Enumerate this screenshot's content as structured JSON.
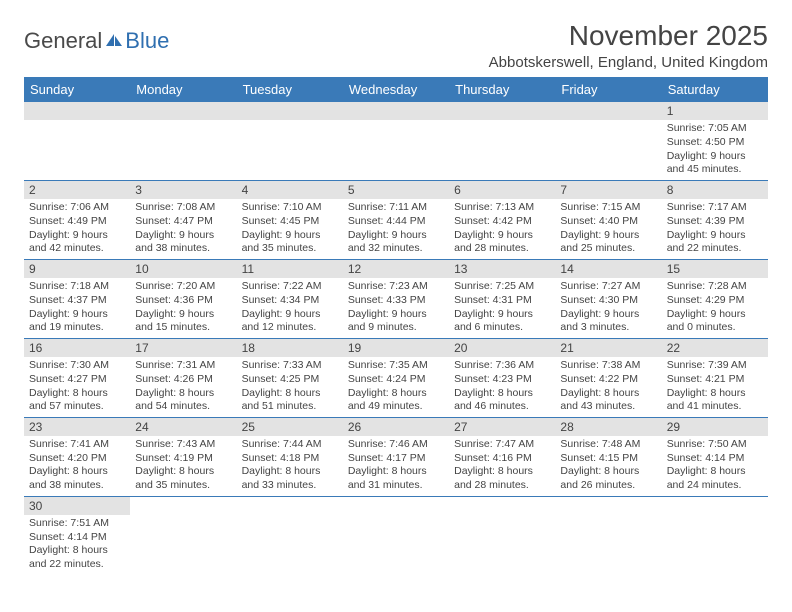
{
  "logo": {
    "text1": "General",
    "text2": "Blue"
  },
  "title": "November 2025",
  "location": "Abbotskerswell, England, United Kingdom",
  "colors": {
    "header_bg": "#3a7ab8",
    "header_text": "#ffffff",
    "daynum_bg": "#e3e3e3",
    "text": "#444444",
    "rule": "#3a7ab8",
    "logo_gray": "#4a4a4a",
    "logo_blue": "#2f6fb0"
  },
  "weekdays": [
    "Sunday",
    "Monday",
    "Tuesday",
    "Wednesday",
    "Thursday",
    "Friday",
    "Saturday"
  ],
  "weeks": [
    [
      null,
      null,
      null,
      null,
      null,
      null,
      {
        "n": "1",
        "sr": "7:05 AM",
        "ss": "4:50 PM",
        "dh": "9",
        "dm": "45"
      }
    ],
    [
      {
        "n": "2",
        "sr": "7:06 AM",
        "ss": "4:49 PM",
        "dh": "9",
        "dm": "42"
      },
      {
        "n": "3",
        "sr": "7:08 AM",
        "ss": "4:47 PM",
        "dh": "9",
        "dm": "38"
      },
      {
        "n": "4",
        "sr": "7:10 AM",
        "ss": "4:45 PM",
        "dh": "9",
        "dm": "35"
      },
      {
        "n": "5",
        "sr": "7:11 AM",
        "ss": "4:44 PM",
        "dh": "9",
        "dm": "32"
      },
      {
        "n": "6",
        "sr": "7:13 AM",
        "ss": "4:42 PM",
        "dh": "9",
        "dm": "28"
      },
      {
        "n": "7",
        "sr": "7:15 AM",
        "ss": "4:40 PM",
        "dh": "9",
        "dm": "25"
      },
      {
        "n": "8",
        "sr": "7:17 AM",
        "ss": "4:39 PM",
        "dh": "9",
        "dm": "22"
      }
    ],
    [
      {
        "n": "9",
        "sr": "7:18 AM",
        "ss": "4:37 PM",
        "dh": "9",
        "dm": "19"
      },
      {
        "n": "10",
        "sr": "7:20 AM",
        "ss": "4:36 PM",
        "dh": "9",
        "dm": "15"
      },
      {
        "n": "11",
        "sr": "7:22 AM",
        "ss": "4:34 PM",
        "dh": "9",
        "dm": "12"
      },
      {
        "n": "12",
        "sr": "7:23 AM",
        "ss": "4:33 PM",
        "dh": "9",
        "dm": "9"
      },
      {
        "n": "13",
        "sr": "7:25 AM",
        "ss": "4:31 PM",
        "dh": "9",
        "dm": "6"
      },
      {
        "n": "14",
        "sr": "7:27 AM",
        "ss": "4:30 PM",
        "dh": "9",
        "dm": "3"
      },
      {
        "n": "15",
        "sr": "7:28 AM",
        "ss": "4:29 PM",
        "dh": "9",
        "dm": "0"
      }
    ],
    [
      {
        "n": "16",
        "sr": "7:30 AM",
        "ss": "4:27 PM",
        "dh": "8",
        "dm": "57"
      },
      {
        "n": "17",
        "sr": "7:31 AM",
        "ss": "4:26 PM",
        "dh": "8",
        "dm": "54"
      },
      {
        "n": "18",
        "sr": "7:33 AM",
        "ss": "4:25 PM",
        "dh": "8",
        "dm": "51"
      },
      {
        "n": "19",
        "sr": "7:35 AM",
        "ss": "4:24 PM",
        "dh": "8",
        "dm": "49"
      },
      {
        "n": "20",
        "sr": "7:36 AM",
        "ss": "4:23 PM",
        "dh": "8",
        "dm": "46"
      },
      {
        "n": "21",
        "sr": "7:38 AM",
        "ss": "4:22 PM",
        "dh": "8",
        "dm": "43"
      },
      {
        "n": "22",
        "sr": "7:39 AM",
        "ss": "4:21 PM",
        "dh": "8",
        "dm": "41"
      }
    ],
    [
      {
        "n": "23",
        "sr": "7:41 AM",
        "ss": "4:20 PM",
        "dh": "8",
        "dm": "38"
      },
      {
        "n": "24",
        "sr": "7:43 AM",
        "ss": "4:19 PM",
        "dh": "8",
        "dm": "35"
      },
      {
        "n": "25",
        "sr": "7:44 AM",
        "ss": "4:18 PM",
        "dh": "8",
        "dm": "33"
      },
      {
        "n": "26",
        "sr": "7:46 AM",
        "ss": "4:17 PM",
        "dh": "8",
        "dm": "31"
      },
      {
        "n": "27",
        "sr": "7:47 AM",
        "ss": "4:16 PM",
        "dh": "8",
        "dm": "28"
      },
      {
        "n": "28",
        "sr": "7:48 AM",
        "ss": "4:15 PM",
        "dh": "8",
        "dm": "26"
      },
      {
        "n": "29",
        "sr": "7:50 AM",
        "ss": "4:14 PM",
        "dh": "8",
        "dm": "24"
      }
    ],
    [
      {
        "n": "30",
        "sr": "7:51 AM",
        "ss": "4:14 PM",
        "dh": "8",
        "dm": "22"
      },
      null,
      null,
      null,
      null,
      null,
      null
    ]
  ]
}
